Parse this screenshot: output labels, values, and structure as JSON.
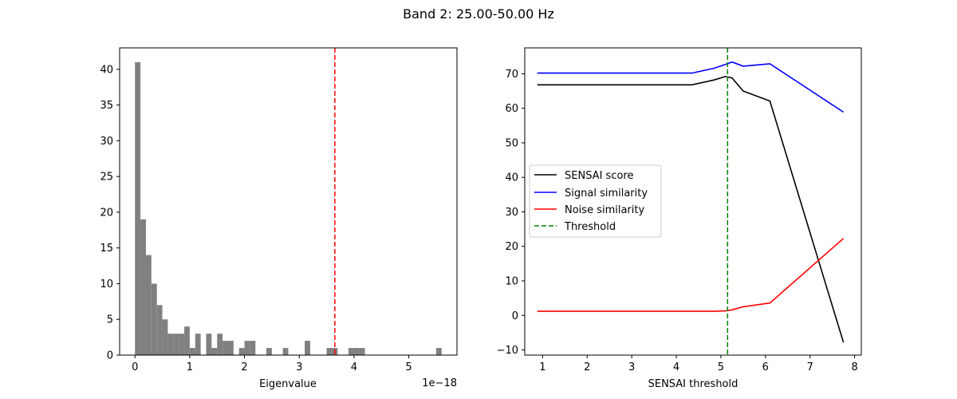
{
  "figure": {
    "suptitle": "Band 2: 25.00-50.00 Hz"
  },
  "chart_data": [
    {
      "type": "bar",
      "title": "",
      "xlabel": "Eigenvalue",
      "ylabel": "",
      "offset_text": "1e−18",
      "xlim": [
        -0.28,
        5.88
      ],
      "ylim": [
        0,
        43
      ],
      "xticks": [
        0,
        1,
        2,
        3,
        4,
        5
      ],
      "yticks": [
        0,
        5,
        10,
        15,
        20,
        25,
        30,
        35,
        40
      ],
      "bar_color": "#808080",
      "bin_width": 0.1,
      "bins": [
        {
          "x": 0.0,
          "count": 41
        },
        {
          "x": 0.1,
          "count": 19
        },
        {
          "x": 0.2,
          "count": 14
        },
        {
          "x": 0.3,
          "count": 10
        },
        {
          "x": 0.4,
          "count": 7
        },
        {
          "x": 0.5,
          "count": 5
        },
        {
          "x": 0.6,
          "count": 3
        },
        {
          "x": 0.7,
          "count": 3
        },
        {
          "x": 0.8,
          "count": 3
        },
        {
          "x": 0.9,
          "count": 4
        },
        {
          "x": 1.0,
          "count": 1
        },
        {
          "x": 1.1,
          "count": 3
        },
        {
          "x": 1.3,
          "count": 3
        },
        {
          "x": 1.4,
          "count": 1
        },
        {
          "x": 1.5,
          "count": 3
        },
        {
          "x": 1.6,
          "count": 2
        },
        {
          "x": 1.7,
          "count": 2
        },
        {
          "x": 1.9,
          "count": 1
        },
        {
          "x": 2.0,
          "count": 2
        },
        {
          "x": 2.1,
          "count": 2
        },
        {
          "x": 2.4,
          "count": 1
        },
        {
          "x": 2.7,
          "count": 1
        },
        {
          "x": 3.1,
          "count": 2
        },
        {
          "x": 3.5,
          "count": 1
        },
        {
          "x": 3.6,
          "count": 1
        },
        {
          "x": 3.9,
          "count": 1
        },
        {
          "x": 4.0,
          "count": 1
        },
        {
          "x": 4.1,
          "count": 1
        },
        {
          "x": 5.5,
          "count": 1
        }
      ],
      "vline": {
        "x": 3.65,
        "color": "#ff0000",
        "style": "dashed"
      }
    },
    {
      "type": "line",
      "title": "",
      "xlabel": "SENSAI threshold",
      "ylabel": "",
      "xlim": [
        0.6,
        8.15
      ],
      "ylim": [
        -11.5,
        77.5
      ],
      "xticks": [
        1,
        2,
        3,
        4,
        5,
        6,
        7,
        8
      ],
      "yticks": [
        -10,
        0,
        10,
        20,
        30,
        40,
        50,
        60,
        70
      ],
      "x": [
        0.88,
        4.35,
        4.85,
        5.1,
        5.25,
        5.5,
        6.1,
        7.75
      ],
      "series": [
        {
          "name": "SENSAI score",
          "color": "#000000",
          "values": [
            66.8,
            66.8,
            68.2,
            69.2,
            68.8,
            65.0,
            62.1,
            -7.8
          ]
        },
        {
          "name": "Signal similarity",
          "color": "#0000ff",
          "values": [
            70.2,
            70.2,
            71.6,
            72.7,
            73.4,
            72.2,
            72.9,
            58.9
          ]
        },
        {
          "name": "Noise similarity",
          "color": "#ff0000",
          "values": [
            1.2,
            1.2,
            1.2,
            1.3,
            1.6,
            2.5,
            3.6,
            22.3
          ]
        }
      ],
      "vline": {
        "x": 5.15,
        "color": "#008000",
        "style": "dashed",
        "name": "Threshold"
      },
      "legend": {
        "placement": "center-left",
        "entries": [
          "SENSAI score",
          "Signal similarity",
          "Noise similarity",
          "Threshold"
        ]
      }
    }
  ]
}
